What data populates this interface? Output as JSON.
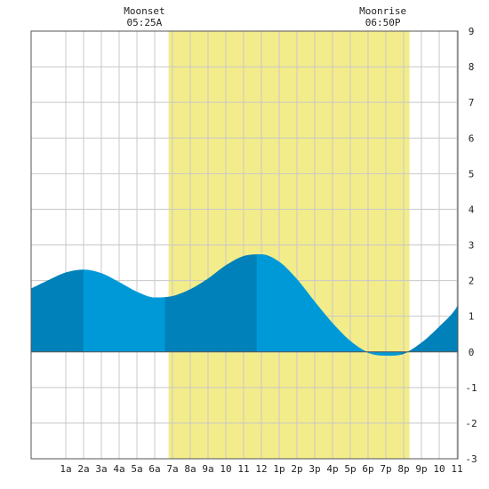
{
  "chart_data": {
    "type": "area",
    "ylim": [
      -3,
      9
    ],
    "xlim_hours": [
      -0.95,
      23.05
    ],
    "yticks": [
      -3,
      -2,
      -1,
      0,
      1,
      2,
      3,
      4,
      5,
      6,
      7,
      8,
      9
    ],
    "xticks": [
      {
        "hour": 1,
        "label": "1a"
      },
      {
        "hour": 2,
        "label": "2a"
      },
      {
        "hour": 3,
        "label": "3a"
      },
      {
        "hour": 4,
        "label": "4a"
      },
      {
        "hour": 5,
        "label": "5a"
      },
      {
        "hour": 6,
        "label": "6a"
      },
      {
        "hour": 7,
        "label": "7a"
      },
      {
        "hour": 8,
        "label": "8a"
      },
      {
        "hour": 9,
        "label": "9a"
      },
      {
        "hour": 10,
        "label": "10"
      },
      {
        "hour": 11,
        "label": "11"
      },
      {
        "hour": 12,
        "label": "12"
      },
      {
        "hour": 13,
        "label": "1p"
      },
      {
        "hour": 14,
        "label": "2p"
      },
      {
        "hour": 15,
        "label": "3p"
      },
      {
        "hour": 16,
        "label": "4p"
      },
      {
        "hour": 17,
        "label": "5p"
      },
      {
        "hour": 18,
        "label": "6p"
      },
      {
        "hour": 19,
        "label": "7p"
      },
      {
        "hour": 20,
        "label": "8p"
      },
      {
        "hour": 21,
        "label": "9p"
      },
      {
        "hour": 22,
        "label": "10"
      },
      {
        "hour": 23,
        "label": "11"
      }
    ],
    "grid": true,
    "daylight": {
      "start_hour": 6.78,
      "end_hour": 20.33
    },
    "moon_events": [
      {
        "label": "Moonset",
        "time": "05:25A",
        "hour": 5.42
      },
      {
        "label": "Moonrise",
        "time": "06:50P",
        "hour": 18.83
      }
    ],
    "tide_extremes": [
      {
        "hour": 2.0,
        "height": 2.3,
        "type": "high"
      },
      {
        "hour": 6.6,
        "height": 1.5,
        "type": "low"
      },
      {
        "hour": 11.75,
        "height": 2.75,
        "type": "high"
      },
      {
        "hour": 19.85,
        "height": -0.1,
        "type": "low"
      }
    ],
    "series": [
      {
        "hours": [
          -0.95,
          0,
          1,
          2,
          3,
          4,
          5,
          6,
          7,
          8,
          9,
          10,
          11,
          12,
          13,
          14,
          15,
          16,
          17,
          18,
          19,
          20,
          21,
          22,
          23,
          23.05
        ],
        "values": [
          1.77,
          2.0,
          2.22,
          2.3,
          2.2,
          1.95,
          1.68,
          1.52,
          1.56,
          1.75,
          2.05,
          2.42,
          2.68,
          2.73,
          2.52,
          2.03,
          1.4,
          0.8,
          0.3,
          -0.02,
          -0.1,
          -0.05,
          0.25,
          0.7,
          1.25,
          1.3
        ]
      }
    ],
    "colors": {
      "daylight": "#f3ec8b",
      "tide_light": "#0099d8",
      "tide_dark": "#0081b9",
      "grid": "#c8c8c8"
    }
  }
}
